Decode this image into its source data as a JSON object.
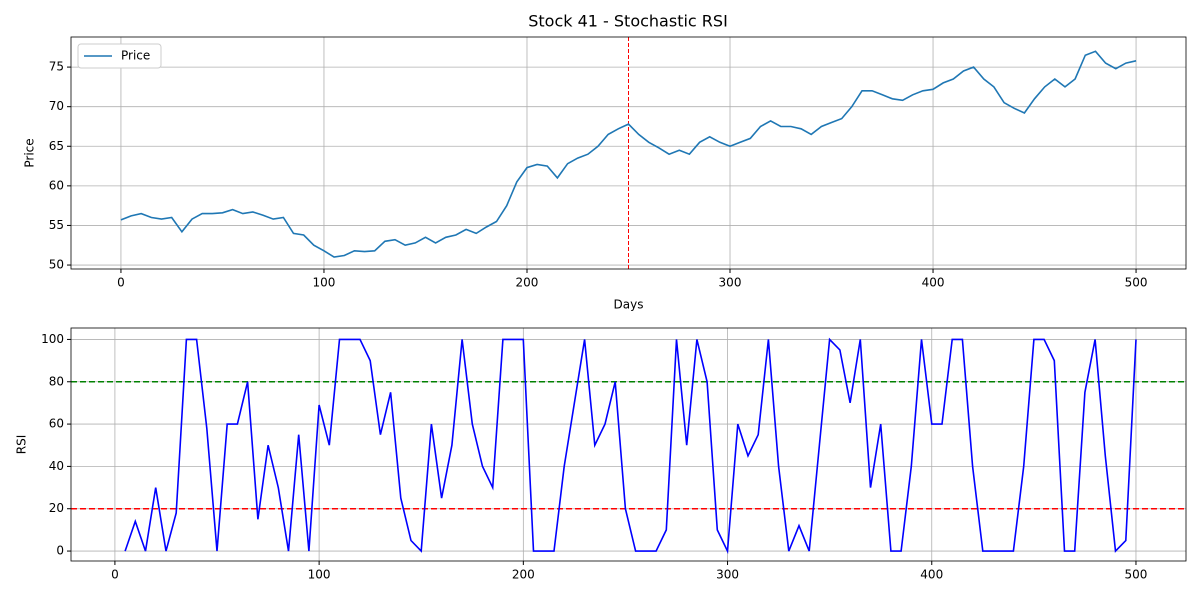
{
  "chart_data": [
    {
      "type": "line",
      "title": "Stock 41 - Stochastic RSI",
      "xlabel": "Days",
      "ylabel": "Price",
      "x": [
        0,
        5,
        10,
        15,
        20,
        25,
        30,
        35,
        40,
        45,
        50,
        55,
        60,
        65,
        70,
        75,
        80,
        85,
        90,
        95,
        100,
        105,
        110,
        115,
        120,
        125,
        130,
        135,
        140,
        145,
        150,
        155,
        160,
        165,
        170,
        175,
        180,
        185,
        190,
        195,
        200,
        205,
        210,
        215,
        220,
        225,
        230,
        235,
        240,
        245,
        250,
        255,
        260,
        265,
        270,
        275,
        280,
        285,
        290,
        295,
        300,
        305,
        310,
        315,
        320,
        325,
        330,
        335,
        340,
        345,
        350,
        355,
        360,
        365,
        370,
        375,
        380,
        385,
        390,
        395,
        400,
        405,
        410,
        415,
        420,
        425,
        430,
        435,
        440,
        445,
        450,
        455,
        460,
        465,
        470,
        475,
        480,
        485,
        490,
        495,
        500
      ],
      "series": [
        {
          "name": "Price",
          "color": "#1f77b4",
          "values": [
            55.7,
            56.2,
            56.5,
            56.0,
            55.8,
            56.0,
            54.2,
            55.8,
            56.5,
            56.5,
            56.6,
            57.0,
            56.5,
            56.7,
            56.3,
            55.8,
            56.0,
            54.0,
            53.8,
            52.5,
            51.8,
            51.0,
            51.2,
            51.8,
            51.7,
            51.8,
            53.0,
            53.2,
            52.5,
            52.8,
            53.5,
            52.8,
            53.5,
            53.8,
            54.5,
            54.0,
            54.8,
            55.5,
            57.5,
            60.5,
            62.3,
            62.7,
            62.5,
            61.0,
            62.8,
            63.5,
            64.0,
            65.0,
            66.5,
            67.2,
            67.8,
            66.5,
            65.5,
            64.8,
            64.0,
            64.5,
            64.0,
            65.5,
            66.2,
            65.5,
            65.0,
            65.5,
            66.0,
            67.5,
            68.2,
            67.5,
            67.5,
            67.2,
            66.5,
            67.5,
            68.0,
            68.5,
            70.0,
            72.0,
            72.0,
            71.5,
            71.0,
            70.8,
            71.5,
            72.0,
            72.2,
            73.0,
            73.5,
            74.5,
            75.0,
            73.5,
            72.5,
            70.5,
            69.8,
            69.2,
            71.0,
            72.5,
            73.5,
            72.5,
            73.5,
            76.5,
            77.0,
            75.5,
            74.8,
            75.5,
            75.8
          ]
        }
      ],
      "vlines": [
        {
          "value": 250,
          "color": "#ff0000"
        }
      ],
      "xlim": [
        -24.6,
        524.6
      ],
      "ylim": [
        49.5,
        78.8
      ],
      "xticks": [
        0,
        100,
        200,
        300,
        400,
        500
      ],
      "yticks": [
        50,
        55,
        60,
        65,
        70,
        75
      ],
      "grid": true,
      "legend": "upper left"
    },
    {
      "type": "line",
      "ylabel": "RSI",
      "x": [
        5,
        10,
        15,
        20,
        25,
        30,
        35,
        40,
        45,
        50,
        55,
        60,
        65,
        70,
        75,
        80,
        85,
        90,
        95,
        100,
        105,
        110,
        115,
        120,
        125,
        130,
        135,
        140,
        145,
        150,
        155,
        160,
        165,
        170,
        175,
        180,
        185,
        190,
        195,
        200,
        205,
        210,
        215,
        220,
        225,
        230,
        235,
        240,
        245,
        250,
        255,
        260,
        265,
        270,
        275,
        280,
        285,
        290,
        295,
        300,
        305,
        310,
        315,
        320,
        325,
        330,
        335,
        340,
        345,
        350,
        355,
        360,
        365,
        370,
        375,
        380,
        385,
        390,
        395,
        400,
        405,
        410,
        415,
        420,
        425,
        430,
        435,
        440,
        445,
        450,
        455,
        460,
        465,
        470,
        475,
        480,
        485,
        490,
        495,
        500
      ],
      "series": [
        {
          "color": "#0000ff",
          "values": [
            0,
            14,
            0,
            30,
            0,
            18,
            100,
            100,
            58,
            0,
            60,
            60,
            80,
            15,
            50,
            30,
            0,
            55,
            0,
            69,
            50,
            100,
            100,
            100,
            90,
            55,
            75,
            25,
            5,
            0,
            60,
            25,
            50,
            100,
            60,
            40,
            30,
            100,
            100,
            100,
            0,
            0,
            0,
            40,
            70,
            100,
            50,
            60,
            80,
            20,
            0,
            0,
            0,
            10,
            100,
            50,
            100,
            80,
            10,
            0,
            60,
            45,
            55,
            100,
            40,
            0,
            12,
            0,
            50,
            100,
            95,
            70,
            100,
            30,
            60,
            0,
            0,
            40,
            100,
            60,
            60,
            100,
            100,
            40,
            0,
            0,
            0,
            0,
            40,
            100,
            100,
            90,
            0,
            0,
            75,
            100,
            45,
            0,
            5,
            100
          ]
        }
      ],
      "hlines": [
        {
          "value": 80,
          "color": "#008000"
        },
        {
          "value": 20,
          "color": "#ff0000"
        }
      ],
      "xlim": [
        -21.5,
        524.5
      ],
      "ylim": [
        -4.7,
        105.4
      ],
      "xticks": [
        0,
        100,
        200,
        300,
        400,
        500
      ],
      "yticks": [
        0,
        20,
        40,
        60,
        80,
        100
      ],
      "grid": true
    }
  ]
}
